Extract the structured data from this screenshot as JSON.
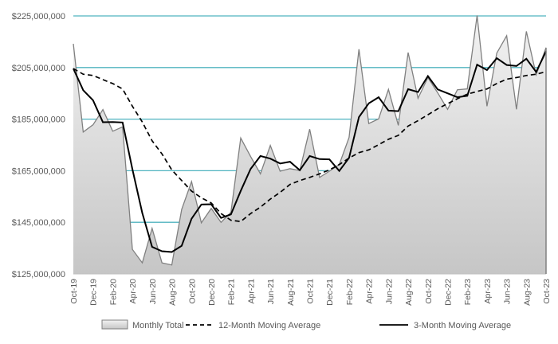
{
  "chart_data": {
    "type": "area",
    "title": "",
    "xlabel": "",
    "ylabel": "",
    "ylim": [
      125000000,
      225000000
    ],
    "yticks": [
      "$125,000,000",
      "$145,000,000",
      "$165,000,000",
      "$185,000,000",
      "$205,000,000",
      "$225,000,000"
    ],
    "ytick_values": [
      125000000,
      145000000,
      165000000,
      185000000,
      205000000,
      225000000
    ],
    "grid": "horizontal",
    "legend_position": "bottom",
    "x": [
      "Oct-19",
      "Nov-19",
      "Dec-19",
      "Jan-20",
      "Feb-20",
      "Mar-20",
      "Apr-20",
      "May-20",
      "Jun-20",
      "Jul-20",
      "Aug-20",
      "Sep-20",
      "Oct-20",
      "Nov-20",
      "Dec-20",
      "Jan-21",
      "Feb-21",
      "Mar-21",
      "Apr-21",
      "May-21",
      "Jun-21",
      "Jul-21",
      "Aug-21",
      "Sep-21",
      "Oct-21",
      "Nov-21",
      "Dec-21",
      "Jan-22",
      "Feb-22",
      "Mar-22",
      "Apr-22",
      "May-22",
      "Jun-22",
      "Jul-22",
      "Aug-22",
      "Sep-22",
      "Oct-22",
      "Nov-22",
      "Dec-22",
      "Jan-23",
      "Feb-23",
      "Mar-23",
      "Apr-23",
      "May-23",
      "Jun-23",
      "Jul-23",
      "Aug-23",
      "Sep-23",
      "Oct-23"
    ],
    "xtick_labels": [
      "Oct-19",
      "Dec-19",
      "Feb-20",
      "Apr-20",
      "Jun-20",
      "Aug-20",
      "Oct-20",
      "Dec-20",
      "Feb-21",
      "Apr-21",
      "Jun-21",
      "Aug-21",
      "Oct-21",
      "Dec-21",
      "Feb-22",
      "Apr-22",
      "Jun-22",
      "Aug-22",
      "Oct-22",
      "Dec-22",
      "Feb-23",
      "Apr-23",
      "Jun-23",
      "Aug-23",
      "Oct-23"
    ],
    "series": [
      {
        "name": "Monthly Total",
        "style": "area",
        "color": "#808080",
        "values": [
          214.2,
          180,
          182.8,
          188.7,
          180.3,
          182,
          134.5,
          129.3,
          142.7,
          129.3,
          128.5,
          150,
          160.8,
          144.8,
          150.4,
          145,
          148.9,
          177.7,
          170.5,
          163.8,
          174.8,
          164.8,
          165.8,
          165.1,
          181.1,
          162.4,
          164.8,
          167.4,
          177.9,
          212.1,
          183.3,
          185.1,
          196.5,
          182.6,
          210.8,
          193.1,
          201.1,
          195.2,
          188.8,
          196.4,
          196.7,
          225.2,
          190,
          210.6,
          217.3,
          188.8,
          219,
          202.2,
          212.7
        ]
      },
      {
        "name": "12-Month Moving Average",
        "style": "dashed",
        "color": "#000000",
        "values": [
          204.6,
          202.4,
          201.9,
          200.3,
          198.8,
          196.7,
          190,
          183.9,
          176.6,
          171.5,
          165.3,
          161.2,
          157.1,
          154.5,
          152.5,
          148.4,
          145.8,
          145.3,
          148.4,
          150.9,
          154,
          156.6,
          159.7,
          161.2,
          162.4,
          163.8,
          165.3,
          167.4,
          169.9,
          172,
          173.1,
          175.1,
          177.2,
          178.7,
          182.3,
          184.4,
          186.7,
          189,
          191,
          192.9,
          194.7,
          195.7,
          196.7,
          198.8,
          200.5,
          201.1,
          201.9,
          202.4,
          203.4
        ]
      },
      {
        "name": "3-Month Moving Average",
        "style": "solid",
        "color": "#000000",
        "values": [
          204.6,
          196.2,
          192.3,
          183.8,
          183.9,
          183.7,
          165.6,
          148.6,
          135.5,
          133.8,
          133.5,
          135.9,
          146.4,
          151.9,
          152,
          146.7,
          148.1,
          157.2,
          165.7,
          170.7,
          169.7,
          167.8,
          168.5,
          165.2,
          170.7,
          169.5,
          169.4,
          164.9,
          170,
          185.8,
          191.1,
          193.5,
          188.3,
          188.1,
          196.6,
          195.5,
          201.7,
          196.5,
          195,
          193.5,
          194,
          206.1,
          204,
          208.6,
          206,
          205.6,
          208.4,
          203.3,
          211.3
        ]
      }
    ],
    "value_unit_multiplier": 1000000,
    "gridline_color": "#4fb3bf"
  }
}
